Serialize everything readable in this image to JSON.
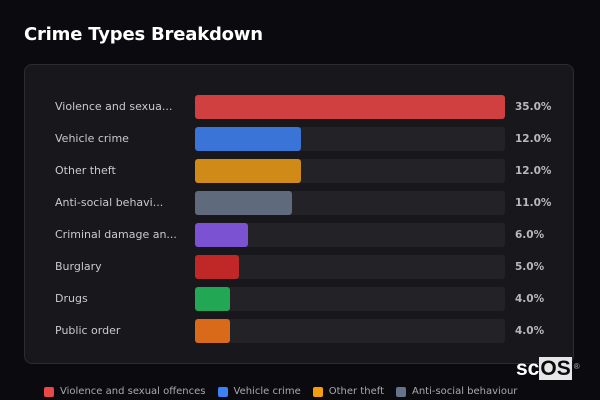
{
  "page": {
    "title": "Crime Types Breakdown"
  },
  "watermark": {
    "text_left": "sc",
    "text_box": "OS",
    "mark": "®"
  },
  "chart_data": {
    "type": "bar",
    "orientation": "horizontal",
    "title": "Crime Types Breakdown",
    "xlabel": "",
    "ylabel": "",
    "xlim": [
      0,
      35
    ],
    "grid": false,
    "categories": [
      "Violence and sexual offences",
      "Vehicle crime",
      "Other theft",
      "Anti-social behaviour",
      "Criminal damage and arson",
      "Burglary",
      "Drugs",
      "Public order"
    ],
    "display_labels": [
      "Violence and sexua...",
      "Vehicle crime",
      "Other theft",
      "Anti-social behavi...",
      "Criminal damage an...",
      "Burglary",
      "Drugs",
      "Public order"
    ],
    "values": [
      35.0,
      12.0,
      12.0,
      11.0,
      6.0,
      5.0,
      4.0,
      4.0
    ],
    "value_labels": [
      "35.0%",
      "12.0%",
      "12.0%",
      "11.0%",
      "6.0%",
      "5.0%",
      "4.0%",
      "4.0%"
    ],
    "colors": [
      "#d04040",
      "#3a74d6",
      "#d08a18",
      "#5f6b7c",
      "#7b52d1",
      "#c02828",
      "#22a755",
      "#d86a1a"
    ],
    "legend": {
      "position": "bottom",
      "entries": [
        {
          "label": "Violence and sexual offences",
          "color": "#e84848"
        },
        {
          "label": "Vehicle crime",
          "color": "#3b82f6"
        },
        {
          "label": "Other theft",
          "color": "#f59e0b"
        },
        {
          "label": "Anti-social behaviour",
          "color": "#64748b"
        }
      ]
    }
  }
}
